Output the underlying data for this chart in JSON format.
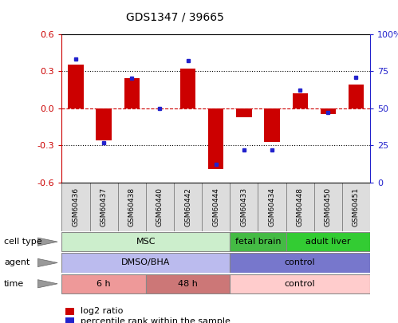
{
  "title": "GDS1347 / 39665",
  "samples": [
    "GSM60436",
    "GSM60437",
    "GSM60438",
    "GSM60440",
    "GSM60442",
    "GSM60444",
    "GSM60433",
    "GSM60434",
    "GSM60448",
    "GSM60450",
    "GSM60451"
  ],
  "log2_ratio": [
    0.35,
    -0.26,
    0.24,
    0.0,
    0.32,
    -0.49,
    -0.07,
    -0.27,
    0.12,
    -0.05,
    0.19
  ],
  "percentile": [
    83,
    27,
    70,
    50,
    82,
    12,
    22,
    22,
    62,
    47,
    71
  ],
  "ylim": [
    -0.6,
    0.6
  ],
  "bar_color": "#cc0000",
  "dot_color": "#2222cc",
  "hline_color": "#cc0000",
  "grid_color": "#000000",
  "cell_type_groups": [
    {
      "label": "MSC",
      "start": 0,
      "end": 5,
      "color": "#cceecc",
      "border": "#888888"
    },
    {
      "label": "fetal brain",
      "start": 6,
      "end": 7,
      "color": "#44bb44",
      "border": "#888888"
    },
    {
      "label": "adult liver",
      "start": 8,
      "end": 10,
      "color": "#33cc33",
      "border": "#888888"
    }
  ],
  "agent_groups": [
    {
      "label": "DMSO/BHA",
      "start": 0,
      "end": 5,
      "color": "#bbbbee",
      "border": "#888888"
    },
    {
      "label": "control",
      "start": 6,
      "end": 10,
      "color": "#7777cc",
      "border": "#888888"
    }
  ],
  "time_groups": [
    {
      "label": "6 h",
      "start": 0,
      "end": 2,
      "color": "#ee9999",
      "border": "#888888"
    },
    {
      "label": "48 h",
      "start": 3,
      "end": 5,
      "color": "#cc7777",
      "border": "#888888"
    },
    {
      "label": "control",
      "start": 6,
      "end": 10,
      "color": "#ffcccc",
      "border": "#888888"
    }
  ],
  "row_labels": [
    "cell type",
    "agent",
    "time"
  ],
  "legend_items": [
    {
      "label": "log2 ratio",
      "color": "#cc0000"
    },
    {
      "label": "percentile rank within the sample",
      "color": "#2222cc"
    }
  ],
  "tick_color_left": "#cc0000",
  "tick_color_right": "#2222cc",
  "left_ticks": [
    -0.6,
    -0.3,
    0.0,
    0.3,
    0.6
  ],
  "right_ticks": [
    0,
    25,
    50,
    75,
    100
  ],
  "right_tick_labels": [
    "0",
    "25",
    "50",
    "75",
    "100%"
  ],
  "sample_box_color": "#dddddd",
  "sample_box_border": "#888888"
}
